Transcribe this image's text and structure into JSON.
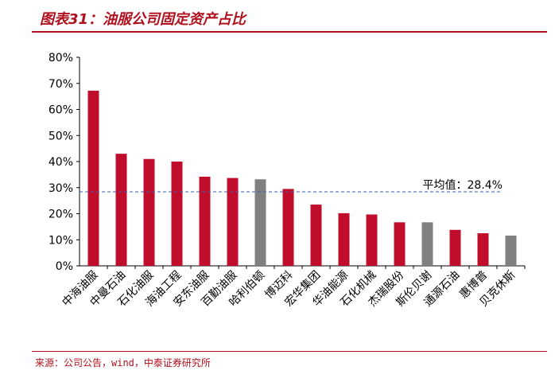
{
  "figure": {
    "title": "图表31：油服公司固定资产占比",
    "source": "来源：公司公告，wind，中泰证券研究所"
  },
  "chart_data": {
    "type": "bar",
    "categories": [
      "中海油服",
      "中曼石油",
      "石化油服",
      "海油工程",
      "安东油服",
      "百勤油服",
      "哈利伯顿",
      "博迈科",
      "宏华集团",
      "华油能源",
      "石化机械",
      "杰瑞股份",
      "斯伦贝谢",
      "通源石油",
      "惠博普",
      "贝克休斯"
    ],
    "values": [
      67.2,
      43,
      41,
      40,
      34.2,
      33.7,
      33.2,
      29.5,
      23.5,
      20.2,
      19.7,
      16.7,
      16.7,
      13.8,
      12.5,
      11.6
    ],
    "bar_colors": [
      "#c00d2b",
      "#c00d2b",
      "#c00d2b",
      "#c00d2b",
      "#c00d2b",
      "#c00d2b",
      "#808080",
      "#c00d2b",
      "#c00d2b",
      "#c00d2b",
      "#c00d2b",
      "#c00d2b",
      "#808080",
      "#c00d2b",
      "#c00d2b",
      "#808080"
    ],
    "y_ticks": [
      "0%",
      "10%",
      "20%",
      "30%",
      "40%",
      "50%",
      "60%",
      "70%",
      "80%"
    ],
    "ylim": [
      0,
      80
    ],
    "average": {
      "value": 28.4,
      "label": "平均值：28.4%",
      "color": "#3b5fb0"
    },
    "title": "",
    "xlabel": "",
    "ylabel": "",
    "grid": false
  }
}
